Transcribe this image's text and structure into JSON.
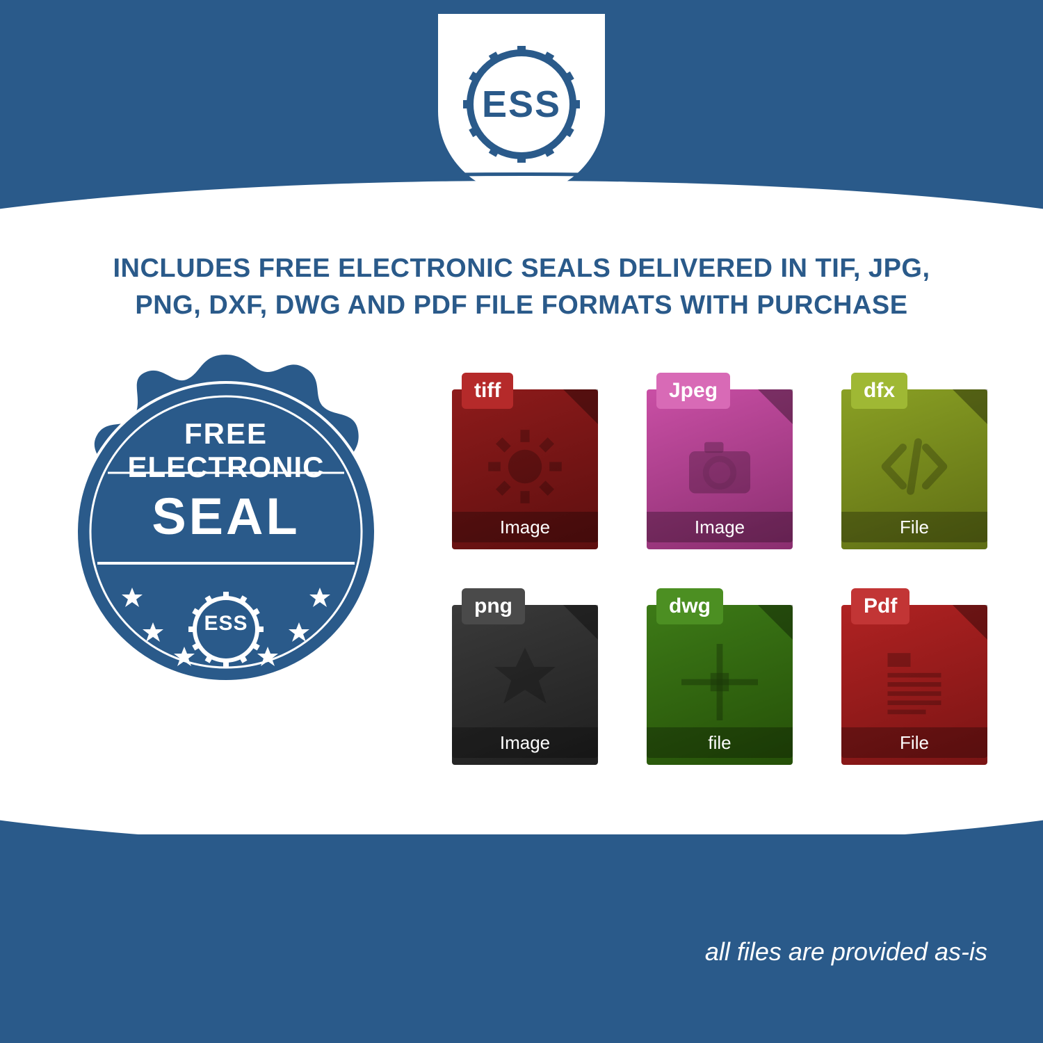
{
  "colors": {
    "brand_blue": "#2a5a8a",
    "white": "#ffffff"
  },
  "logo": {
    "text": "ESS"
  },
  "headline": {
    "line1": "INCLUDES FREE ELECTRONIC SEALS DELIVERED IN TIF, JPG,",
    "line2": "PNG, DXF, DWG AND PDF FILE FORMATS WITH PURCHASE",
    "color": "#2a5a8a",
    "fontsize": 38
  },
  "seal": {
    "line1": "FREE",
    "line2": "ELECTRONIC",
    "line3": "SEAL",
    "brand": "ESS",
    "fill": "#2a5a8a",
    "text_color": "#ffffff"
  },
  "file_icons": [
    {
      "name": "tiff",
      "tab_label": "tiff",
      "footer_label": "Image",
      "body_color": "#8e1b1b",
      "body_color_dark": "#5d0f0f",
      "tab_color": "#b52a2a",
      "icon": "gear"
    },
    {
      "name": "jpeg",
      "tab_label": "Jpeg",
      "footer_label": "Image",
      "body_color": "#c94fa5",
      "body_color_dark": "#8a2e6f",
      "tab_color": "#d86ab6",
      "icon": "camera"
    },
    {
      "name": "dfx",
      "tab_label": "dfx",
      "footer_label": "File",
      "body_color": "#8aa024",
      "body_color_dark": "#5e6d14",
      "tab_color": "#9fb834",
      "icon": "code"
    },
    {
      "name": "png",
      "tab_label": "png",
      "footer_label": "Image",
      "body_color": "#3a3a3a",
      "body_color_dark": "#1f1f1f",
      "tab_color": "#4a4a4a",
      "icon": "starburst"
    },
    {
      "name": "dwg",
      "tab_label": "dwg",
      "footer_label": "file",
      "body_color": "#3d7a17",
      "body_color_dark": "#255008",
      "tab_color": "#4c8f22",
      "icon": "crosshair"
    },
    {
      "name": "pdf",
      "tab_label": "Pdf",
      "footer_label": "File",
      "body_color": "#b02222",
      "body_color_dark": "#7a1414",
      "tab_color": "#c23535",
      "icon": "doc-lines"
    }
  ],
  "footer": {
    "text": "all files are provided as-is",
    "color": "#ffffff",
    "fontsize": 36
  }
}
